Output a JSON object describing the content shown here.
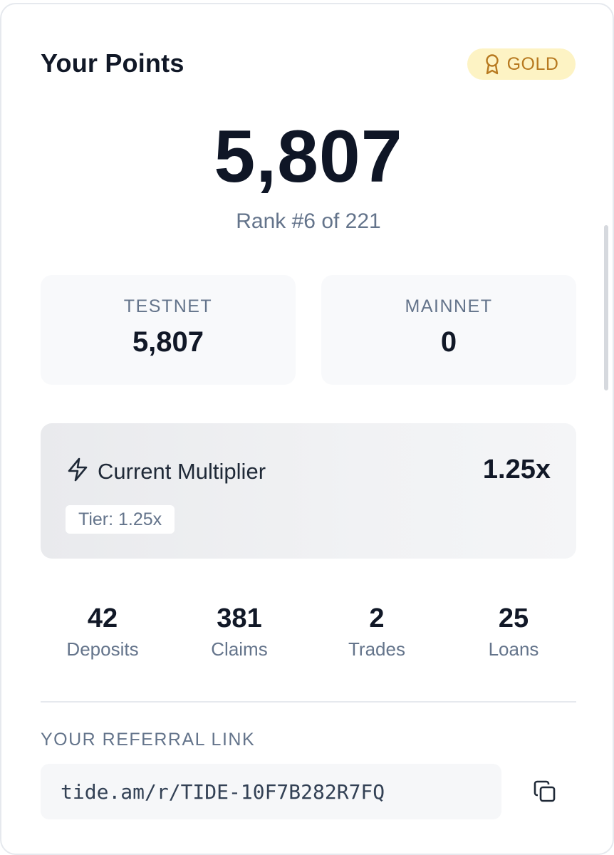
{
  "header": {
    "title": "Your Points",
    "badge": {
      "label": "GOLD",
      "icon": "award-ribbon-icon",
      "color": "#b7791f",
      "background": "#fdf3c4"
    }
  },
  "points": {
    "total": "5,807",
    "rank": "Rank #6 of 221"
  },
  "networks": {
    "testnet": {
      "label": "TESTNET",
      "value": "5,807"
    },
    "mainnet": {
      "label": "MAINNET",
      "value": "0"
    }
  },
  "multiplier": {
    "icon": "lightning-bolt-icon",
    "label": "Current Multiplier",
    "value": "1.25x",
    "tier": "Tier: 1.25x"
  },
  "stats": [
    {
      "value": "42",
      "label": "Deposits"
    },
    {
      "value": "381",
      "label": "Claims"
    },
    {
      "value": "2",
      "label": "Trades"
    },
    {
      "value": "25",
      "label": "Loans"
    }
  ],
  "referral": {
    "label": "YOUR REFERRAL LINK",
    "link": "tide.am/r/TIDE-10F7B282R7FQ",
    "copy_icon": "copy-icon"
  }
}
